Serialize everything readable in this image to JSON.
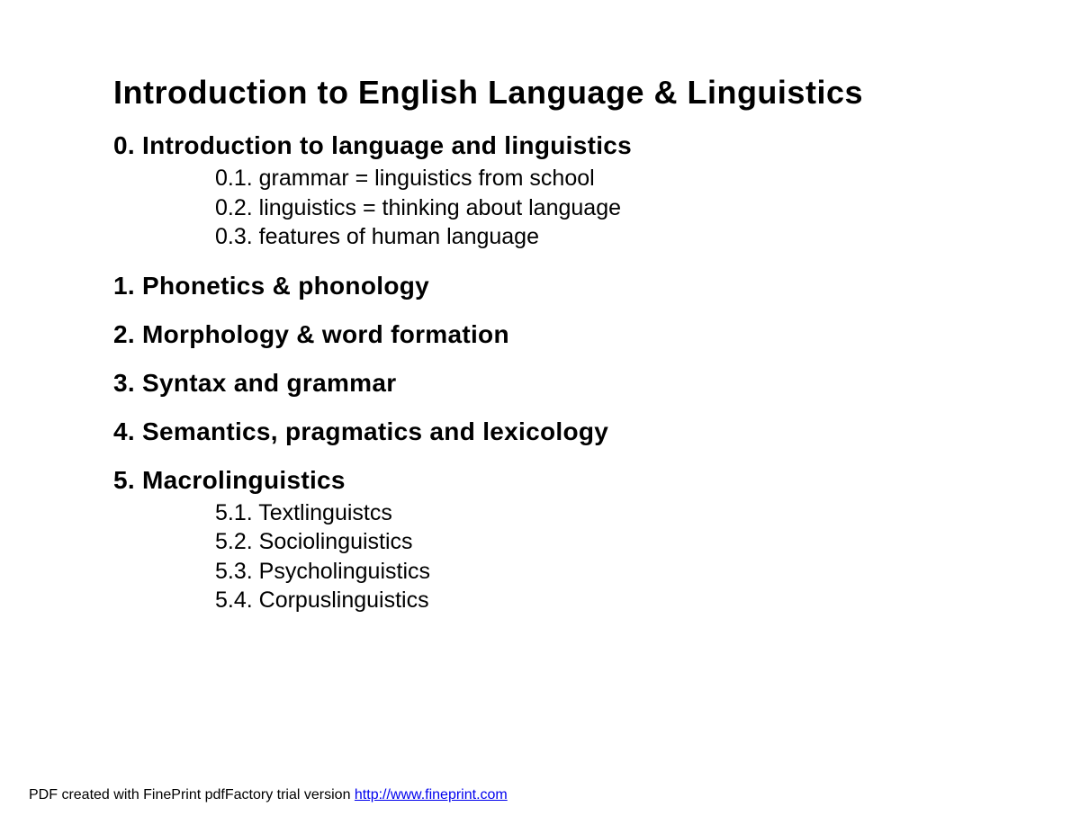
{
  "title": "Introduction to English Language & Linguistics",
  "sections": [
    {
      "heading": "0. Introduction to language and linguistics",
      "subitems": [
        "0.1. grammar = linguistics from school",
        "0.2. linguistics = thinking about language",
        "0.3. features of human language"
      ]
    },
    {
      "heading": "1. Phonetics & phonology",
      "subitems": []
    },
    {
      "heading": "2. Morphology & word formation",
      "subitems": []
    },
    {
      "heading": "3. Syntax and grammar",
      "subitems": []
    },
    {
      "heading": "4. Semantics, pragmatics and lexicology",
      "subitems": []
    },
    {
      "heading": "5. Macrolinguistics",
      "subitems": [
        "5.1. Textlinguistcs",
        "5.2. Sociolinguistics",
        "5.3. Psycholinguistics",
        "5.4. Corpuslinguistics"
      ]
    }
  ],
  "footer": {
    "prefix": "PDF created with FinePrint pdfFactory trial version ",
    "link_text": "http://www.fineprint.com"
  },
  "colors": {
    "background": "#ffffff",
    "text": "#000000",
    "link": "#0000ee"
  },
  "typography": {
    "title_fontsize": 36,
    "heading_fontsize": 28,
    "subitem_fontsize": 25,
    "footer_fontsize": 16,
    "title_font": "Arial",
    "subitem_font": "Verdana"
  }
}
